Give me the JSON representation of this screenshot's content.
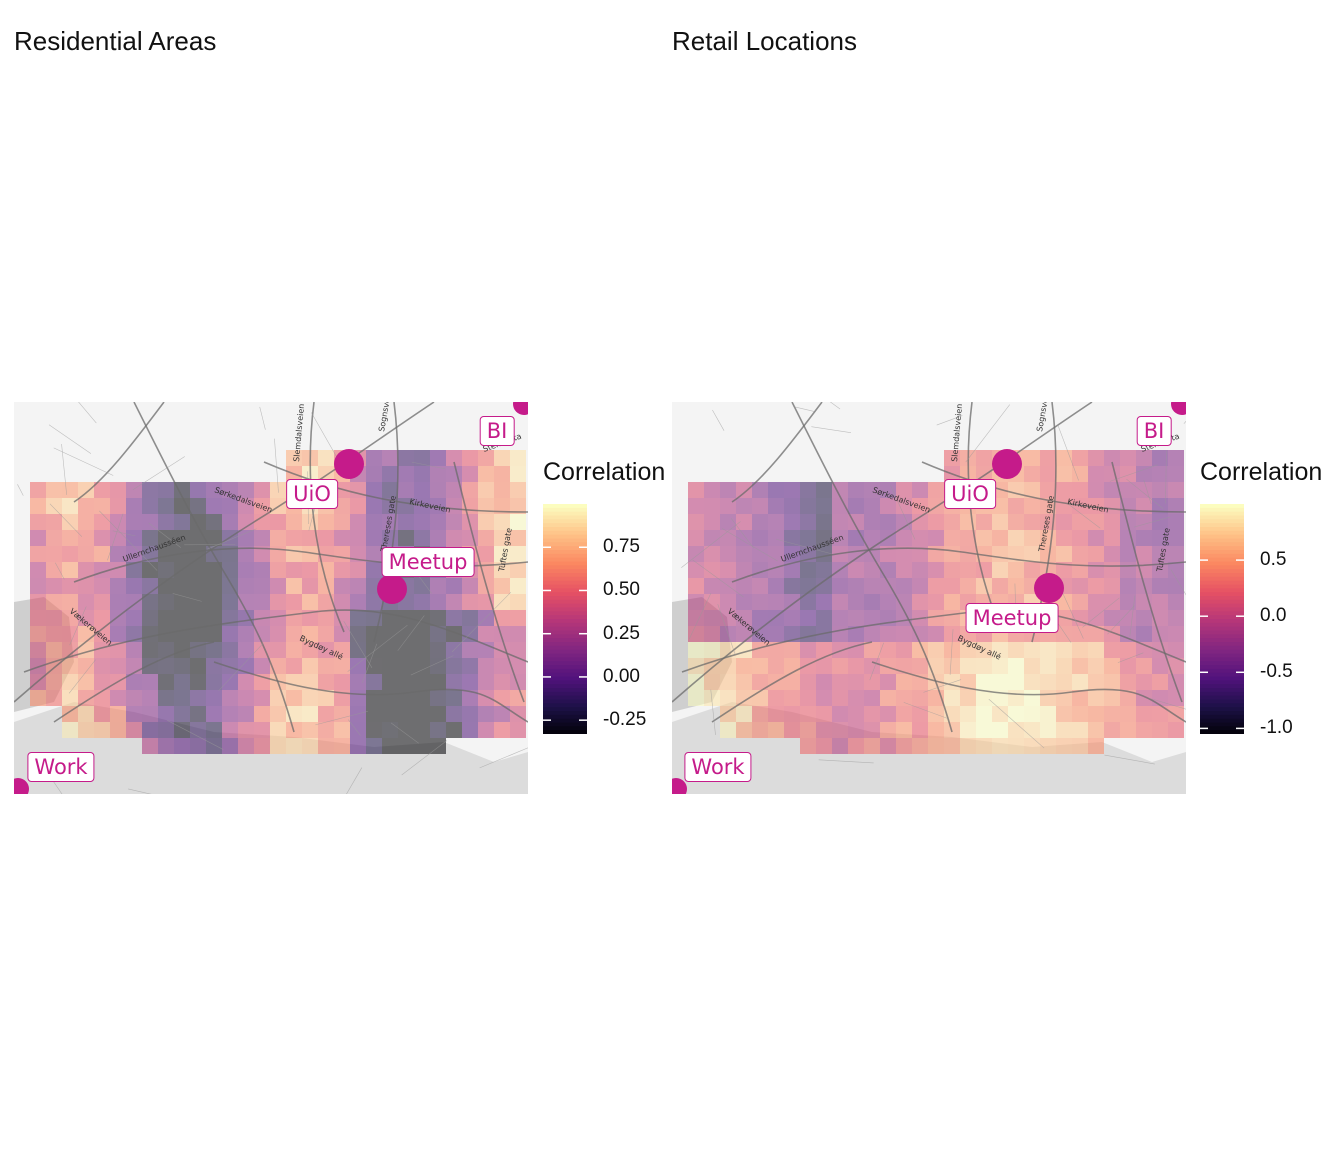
{
  "panels": [
    {
      "title": "Residential Areas",
      "legend": {
        "title": "Correlation",
        "ticks": [
          "0.75",
          "0.50",
          "0.25",
          "0.00",
          "-0.25"
        ],
        "tick_values": [
          0.75,
          0.5,
          0.25,
          0.0,
          -0.25
        ],
        "range": [
          -0.33,
          1.0
        ]
      },
      "places": [
        {
          "name": "UiO",
          "lon": 10.72,
          "lat": 59.94
        },
        {
          "name": "Meetup",
          "lon": 10.735,
          "lat": 59.93
        },
        {
          "name": "BI",
          "lon": 10.755,
          "lat": 59.95
        },
        {
          "name": "Work",
          "lon": 10.67,
          "lat": 59.915
        }
      ],
      "pattern_seed": 3
    },
    {
      "title": "Retail Locations",
      "legend": {
        "title": "Correlation",
        "ticks": [
          "0.5",
          "0.0",
          "-0.5",
          "-1.0"
        ],
        "tick_values": [
          0.5,
          0.0,
          -0.5,
          -1.0
        ],
        "range": [
          -1.05,
          1.0
        ]
      },
      "places": [
        {
          "name": "UiO",
          "lon": 10.72,
          "lat": 59.94
        },
        {
          "name": "Meetup",
          "lon": 10.735,
          "lat": 59.93
        },
        {
          "name": "BI",
          "lon": 10.755,
          "lat": 59.95
        },
        {
          "name": "Work",
          "lon": 10.67,
          "lat": 59.915
        }
      ],
      "pattern_seed": 7
    }
  ],
  "street_names": [
    "Sørkedalsveien",
    "Ullernchausséen",
    "Kirkeveien",
    "Vækerøveien",
    "Bygdøy allé",
    "Sognsveien",
    "Thereses gate",
    "Tuftes gate",
    "Slemdalsveien",
    "Stensgata"
  ],
  "colors": {
    "accent": "#c51b8a",
    "water": "#dcdcdc",
    "land": "#f4f4f4",
    "road": "#6b6b6b",
    "magma": [
      "#000004",
      "#1d1147",
      "#51127c",
      "#822681",
      "#b63679",
      "#e65164",
      "#fb8861",
      "#fec287",
      "#fcfdbf"
    ]
  }
}
